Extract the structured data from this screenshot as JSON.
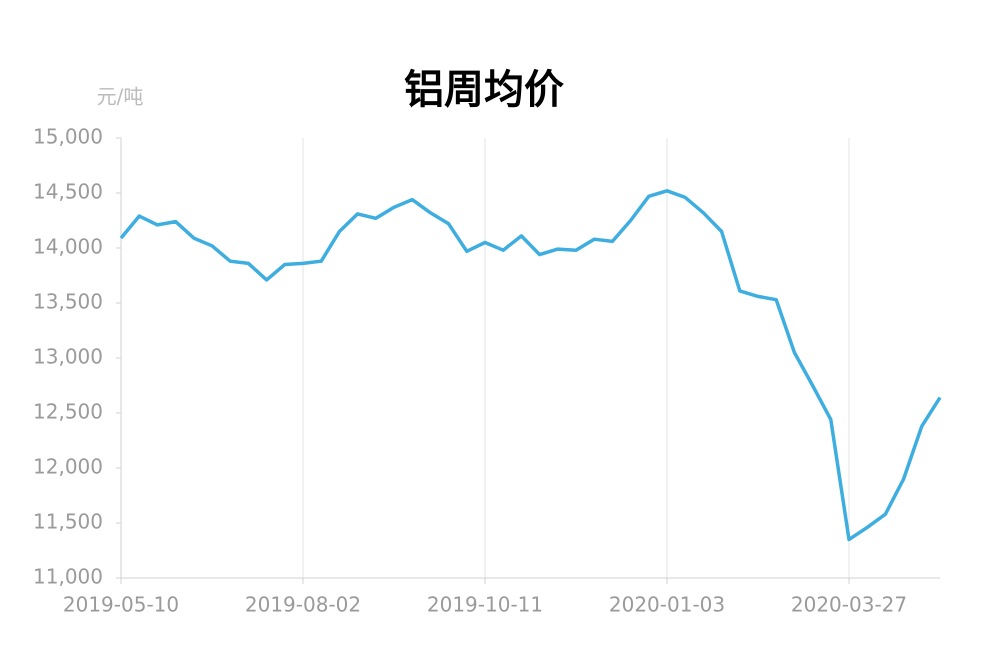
{
  "chart_data": {
    "type": "line",
    "title": "铝周均价",
    "y_unit_label": "元/吨",
    "categories": [
      "2019-05-10",
      null,
      null,
      null,
      null,
      null,
      null,
      null,
      null,
      null,
      "2019-08-02",
      null,
      null,
      null,
      null,
      null,
      null,
      null,
      null,
      null,
      "2019-10-11",
      null,
      null,
      null,
      null,
      null,
      null,
      null,
      null,
      null,
      "2020-01-03",
      null,
      null,
      null,
      null,
      null,
      null,
      null,
      null,
      null,
      "2020-03-27",
      null,
      null,
      null,
      null,
      null
    ],
    "values": [
      14090,
      14290,
      14210,
      14240,
      14090,
      14020,
      13880,
      13860,
      13710,
      13850,
      13860,
      13880,
      14150,
      14310,
      14270,
      14370,
      14440,
      14320,
      14220,
      13970,
      14050,
      13980,
      14110,
      13940,
      13990,
      13980,
      14080,
      14060,
      14250,
      14470,
      14520,
      14460,
      14320,
      14150,
      13610,
      13560,
      13530,
      13050,
      12750,
      12440,
      11350,
      11460,
      11580,
      11900,
      12380,
      12640
    ],
    "color": "#3eaee0",
    "ylim": [
      11000,
      15000
    ],
    "yticks": [
      {
        "value": 11000,
        "label": "11,000"
      },
      {
        "value": 11500,
        "label": "11,500"
      },
      {
        "value": 12000,
        "label": "12,000"
      },
      {
        "value": 12500,
        "label": "12,500"
      },
      {
        "value": 13000,
        "label": "13,000"
      },
      {
        "value": 13500,
        "label": "13,500"
      },
      {
        "value": 14000,
        "label": "14,000"
      },
      {
        "value": 14500,
        "label": "14,500"
      },
      {
        "value": 15000,
        "label": "15,000"
      }
    ],
    "grid": "x"
  }
}
